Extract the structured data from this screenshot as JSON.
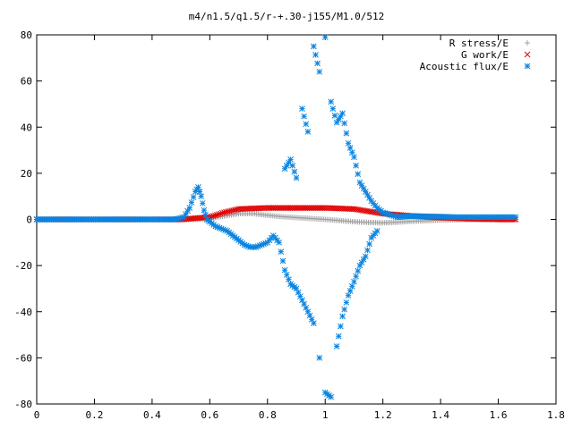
{
  "chart_data": {
    "type": "scatter",
    "title": "m4/n1.5/q1.5/r-+.30-j155/M1.0/512",
    "xlabel": "",
    "ylabel": "",
    "xlim": [
      0,
      1.8
    ],
    "ylim": [
      -80,
      80
    ],
    "x_ticks": [
      "0",
      "0.2",
      "0.4",
      "0.6",
      "0.8",
      "1",
      "1.2",
      "1.4",
      "1.6",
      "1.8"
    ],
    "y_ticks": [
      "80",
      "60",
      "40",
      "20",
      "0",
      "-20",
      "-40",
      "-60",
      "-80"
    ],
    "grid": false,
    "legend_position": "top-right",
    "series": [
      {
        "name": "R stress/E",
        "color": "#a0a0a0",
        "marker": "plus",
        "points": [
          [
            0.0,
            0
          ],
          [
            0.2,
            0
          ],
          [
            0.4,
            0
          ],
          [
            0.5,
            0
          ],
          [
            0.55,
            0
          ],
          [
            0.6,
            0.5
          ],
          [
            0.65,
            1.5
          ],
          [
            0.7,
            2.5
          ],
          [
            0.75,
            2.5
          ],
          [
            0.8,
            1.8
          ],
          [
            0.85,
            1.2
          ],
          [
            0.9,
            0.8
          ],
          [
            0.95,
            0.4
          ],
          [
            1.0,
            0
          ],
          [
            1.05,
            -0.5
          ],
          [
            1.1,
            -1.0
          ],
          [
            1.15,
            -1.3
          ],
          [
            1.2,
            -1.5
          ],
          [
            1.25,
            -1.2
          ],
          [
            1.3,
            -0.8
          ],
          [
            1.4,
            -0.3
          ],
          [
            1.5,
            -0.1
          ],
          [
            1.6,
            0
          ],
          [
            1.66,
            0
          ]
        ]
      },
      {
        "name": "G work/E",
        "color": "#e00000",
        "marker": "cross",
        "points": [
          [
            0.0,
            0
          ],
          [
            0.2,
            0
          ],
          [
            0.4,
            0
          ],
          [
            0.5,
            0
          ],
          [
            0.6,
            1.0
          ],
          [
            0.65,
            3.0
          ],
          [
            0.7,
            4.5
          ],
          [
            0.8,
            5.0
          ],
          [
            0.9,
            5.0
          ],
          [
            1.0,
            5.0
          ],
          [
            1.1,
            4.5
          ],
          [
            1.15,
            3.5
          ],
          [
            1.2,
            2.5
          ],
          [
            1.25,
            2.0
          ],
          [
            1.3,
            1.5
          ],
          [
            1.4,
            0.8
          ],
          [
            1.5,
            0.3
          ],
          [
            1.6,
            0
          ],
          [
            1.66,
            0
          ]
        ]
      },
      {
        "name": "Acoustic flux/E",
        "color": "#0a84e0",
        "marker": "star",
        "points": [
          [
            0.0,
            0
          ],
          [
            0.1,
            0
          ],
          [
            0.2,
            0
          ],
          [
            0.3,
            0
          ],
          [
            0.4,
            0
          ],
          [
            0.48,
            0
          ],
          [
            0.51,
            1
          ],
          [
            0.53,
            5
          ],
          [
            0.55,
            12
          ],
          [
            0.56,
            14
          ],
          [
            0.57,
            10
          ],
          [
            0.58,
            4
          ],
          [
            0.59,
            0
          ],
          [
            0.6,
            -1
          ],
          [
            0.62,
            -3
          ],
          [
            0.64,
            -4
          ],
          [
            0.66,
            -5
          ],
          [
            0.68,
            -7
          ],
          [
            0.7,
            -9
          ],
          [
            0.72,
            -11
          ],
          [
            0.74,
            -12
          ],
          [
            0.76,
            -12
          ],
          [
            0.78,
            -11
          ],
          [
            0.8,
            -10
          ],
          [
            0.82,
            -7
          ],
          [
            0.84,
            -10
          ],
          [
            0.86,
            -22
          ],
          [
            0.88,
            -28
          ],
          [
            0.9,
            -30
          ],
          [
            0.92,
            -35
          ],
          [
            0.94,
            -40
          ],
          [
            0.96,
            -45
          ],
          [
            0.98,
            -60
          ],
          [
            1.0,
            -75
          ],
          [
            1.02,
            -77
          ],
          [
            1.04,
            -55
          ],
          [
            1.06,
            -42
          ],
          [
            1.08,
            -33
          ],
          [
            1.1,
            -27
          ],
          [
            1.12,
            -20
          ],
          [
            1.14,
            -16
          ],
          [
            1.16,
            -8
          ],
          [
            1.18,
            -5
          ],
          [
            0.86,
            22
          ],
          [
            0.88,
            26
          ],
          [
            0.9,
            18
          ],
          [
            0.92,
            48
          ],
          [
            0.94,
            38
          ],
          [
            0.96,
            75
          ],
          [
            0.98,
            64
          ],
          [
            1.0,
            79
          ],
          [
            1.02,
            51
          ],
          [
            1.04,
            42
          ],
          [
            1.06,
            46
          ],
          [
            1.08,
            33
          ],
          [
            1.1,
            27
          ],
          [
            1.12,
            16
          ],
          [
            1.14,
            12
          ],
          [
            1.16,
            8
          ],
          [
            1.18,
            5
          ],
          [
            1.2,
            3
          ],
          [
            1.25,
            1
          ],
          [
            1.3,
            1.5
          ],
          [
            1.35,
            1.3
          ],
          [
            1.4,
            1.2
          ],
          [
            1.45,
            1.0
          ],
          [
            1.5,
            1.0
          ],
          [
            1.55,
            1.0
          ],
          [
            1.6,
            1.0
          ],
          [
            1.66,
            1.0
          ]
        ]
      }
    ]
  }
}
